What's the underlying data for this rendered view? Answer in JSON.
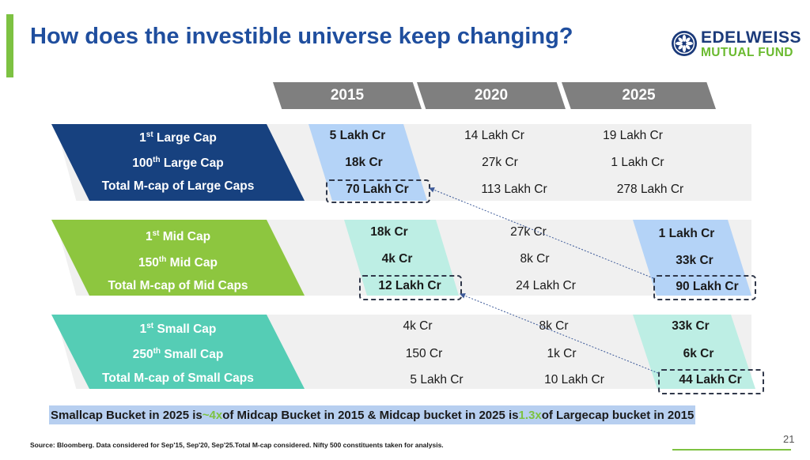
{
  "title": "How does the investible universe keep changing?",
  "logo": {
    "line1": "EDELWEISS",
    "line2": "MUTUAL FUND"
  },
  "years": [
    "2015",
    "2020",
    "2025"
  ],
  "large": {
    "row1": {
      "ord": "1",
      "sup": "st",
      "rest": " Large Cap",
      "v2015": "5 Lakh Cr",
      "v2020": "14 Lakh Cr",
      "v2025": "19 Lakh Cr"
    },
    "row2": {
      "ord": "100",
      "sup": "th",
      "rest": " Large Cap",
      "v2015": "18k Cr",
      "v2020": "27k Cr",
      "v2025": "1 Lakh Cr"
    },
    "row3": {
      "label": "Total M-cap of Large Caps",
      "v2015": "70 Lakh Cr",
      "v2020": "113 Lakh Cr",
      "v2025": "278 Lakh Cr"
    }
  },
  "mid": {
    "row1": {
      "ord": "1",
      "sup": "st",
      "rest": " Mid Cap",
      "v2015": "18k Cr",
      "v2020": "27k Cr",
      "v2025": "1 Lakh Cr"
    },
    "row2": {
      "ord": "150",
      "sup": "th",
      "rest": " Mid Cap",
      "v2015": "4k Cr",
      "v2020": "8k Cr",
      "v2025": "33k Cr"
    },
    "row3": {
      "label": "Total M-cap of Mid Caps",
      "v2015": "12 Lakh Cr",
      "v2020": "24 Lakh Cr",
      "v2025": "90 Lakh Cr"
    }
  },
  "small": {
    "row1": {
      "ord": "1",
      "sup": "st",
      "rest": " Small Cap",
      "v2015": "4k Cr",
      "v2020": "8k Cr",
      "v2025": "33k Cr"
    },
    "row2": {
      "ord": "250",
      "sup": "th",
      "rest": " Small Cap",
      "v2015": "150 Cr",
      "v2020": "1k Cr",
      "v2025": "6k Cr"
    },
    "row3": {
      "label": "Total M-cap of Small Caps",
      "v2015": "5 Lakh Cr",
      "v2020": "10 Lakh Cr",
      "v2025": "44 Lakh Cr"
    }
  },
  "conclusion": {
    "part1": "Smallcap Bucket in 2025 is ",
    "mult1": "~4x",
    "part2": " of Midcap Bucket in 2015 & Midcap bucket in 2025 is ",
    "mult2": "1.3x",
    "part3": " of Largecap bucket in 2015"
  },
  "source": "Source: Bloomberg. Data considered for Sep'15, Sep'20, Sep'25.Total M-cap considered. Nifty 500 constituents taken for analysis.",
  "page_number": "21",
  "colors": {
    "title": "#1f4e9e",
    "accent": "#7dc242",
    "large_label": "#17417f",
    "mid_label": "#8dc63f",
    "small_label": "#55cdb5",
    "highlight_blue": "#b4d3f7",
    "highlight_teal": "#bdeee4",
    "year_header": "#7f7f7f",
    "conclusion_bg": "#b7cff0"
  }
}
